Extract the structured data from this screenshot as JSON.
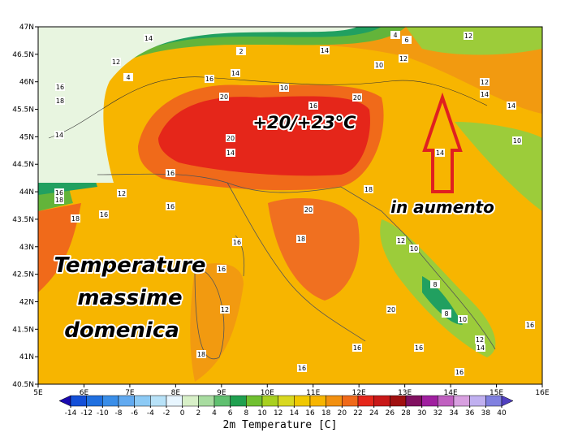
{
  "map": {
    "lat_labels": [
      "47N",
      "46.5N",
      "46N",
      "45.5N",
      "45N",
      "44.5N",
      "44N",
      "43.5N",
      "43N",
      "42.5N",
      "42N",
      "41.5N",
      "41N",
      "40.5N"
    ],
    "lon_labels": [
      "5E",
      "6E",
      "7E",
      "8E",
      "9E",
      "10E",
      "11E",
      "12E",
      "13E",
      "14E",
      "15E",
      "16E"
    ],
    "annotations": {
      "temperature_range": "+20/+23°C",
      "trend": "in aumento",
      "caption": [
        "Temperature",
        "massime",
        "domenica"
      ]
    },
    "contour_labels": [
      "14",
      "4",
      "6",
      "12",
      "12",
      "4",
      "2",
      "14",
      "10",
      "12",
      "16",
      "18",
      "16",
      "14",
      "10",
      "12",
      "14",
      "14",
      "20",
      "20",
      "16",
      "14",
      "20",
      "14",
      "10",
      "14",
      "16",
      "16",
      "18",
      "12",
      "16",
      "18",
      "20",
      "18",
      "16",
      "16",
      "12",
      "10",
      "18",
      "16",
      "8",
      "12",
      "20",
      "8",
      "10",
      "16",
      "12",
      "14",
      "18",
      "16",
      "16",
      "16",
      "16"
    ],
    "colorbar": {
      "title": "2m Temperature [C]",
      "ticks": [
        -14,
        -12,
        -10,
        -8,
        -6,
        -4,
        -2,
        0,
        2,
        4,
        6,
        8,
        10,
        12,
        14,
        16,
        18,
        20,
        22,
        24,
        26,
        28,
        30,
        32,
        34,
        36,
        38,
        40
      ]
    }
  }
}
